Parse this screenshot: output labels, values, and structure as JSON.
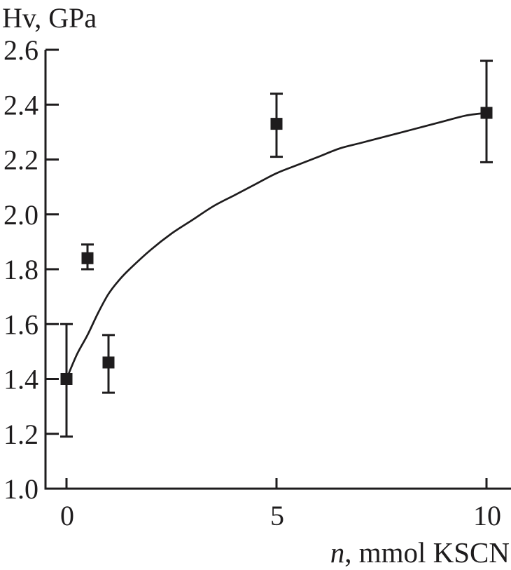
{
  "figure": {
    "background": "#ffffff",
    "ink_color": "#1e1c1d"
  },
  "chart_data": {
    "type": "scatter",
    "title": "",
    "ylabel": "Hv, GPa",
    "xlabel_var": "n",
    "xlabel_rest": ", mmol KSCN",
    "x_domain": [
      0,
      10
    ],
    "y_domain": [
      1.0,
      2.6
    ],
    "grid": false,
    "legend": "none",
    "marker": "filled-square",
    "x_ticks": [
      {
        "value": 0,
        "label": "0"
      },
      {
        "value": 5,
        "label": "5"
      },
      {
        "value": 10,
        "label": "10"
      }
    ],
    "y_ticks": [
      {
        "value": 2.6,
        "label": "2.6"
      },
      {
        "value": 2.4,
        "label": "2.4"
      },
      {
        "value": 2.2,
        "label": "2.2"
      },
      {
        "value": 2.0,
        "label": "2.0"
      },
      {
        "value": 1.8,
        "label": "1.8"
      },
      {
        "value": 1.6,
        "label": "1.6"
      },
      {
        "value": 1.4,
        "label": "1.4"
      },
      {
        "value": 1.2,
        "label": "1.2"
      },
      {
        "value": 1.0,
        "label": "1.0"
      }
    ],
    "points": [
      {
        "x": 0,
        "y": 1.4,
        "y_low": 1.19,
        "y_high": 1.6
      },
      {
        "x": 0.5,
        "y": 1.84,
        "y_low": 1.8,
        "y_high": 1.89
      },
      {
        "x": 1,
        "y": 1.46,
        "y_low": 1.35,
        "y_high": 1.56
      },
      {
        "x": 5,
        "y": 2.33,
        "y_low": 2.21,
        "y_high": 2.44
      },
      {
        "x": 10,
        "y": 2.37,
        "y_low": 2.19,
        "y_high": 2.56
      }
    ],
    "fit_curve": [
      [
        0,
        1.4
      ],
      [
        0.25,
        1.49
      ],
      [
        0.5,
        1.56
      ],
      [
        0.75,
        1.64
      ],
      [
        1,
        1.71
      ],
      [
        1.25,
        1.76
      ],
      [
        1.5,
        1.8
      ],
      [
        2,
        1.87
      ],
      [
        2.5,
        1.93
      ],
      [
        3,
        1.98
      ],
      [
        3.5,
        2.03
      ],
      [
        4,
        2.07
      ],
      [
        4.5,
        2.11
      ],
      [
        5,
        2.15
      ],
      [
        5.5,
        2.18
      ],
      [
        6,
        2.21
      ],
      [
        6.5,
        2.24
      ],
      [
        7,
        2.26
      ],
      [
        7.5,
        2.28
      ],
      [
        8,
        2.3
      ],
      [
        8.5,
        2.32
      ],
      [
        9,
        2.34
      ],
      [
        9.5,
        2.36
      ],
      [
        10,
        2.37
      ]
    ]
  }
}
